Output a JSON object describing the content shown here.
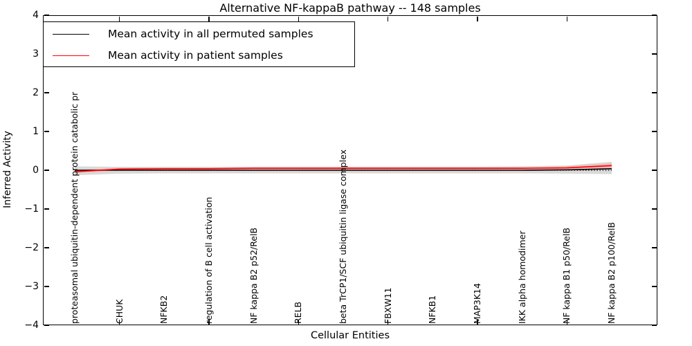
{
  "chart_data": {
    "type": "line",
    "title": "Alternative NF-kappaB pathway -- 148 samples",
    "xlabel": "Cellular Entities",
    "ylabel": "Inferred Activity",
    "ylim": [
      -4,
      4
    ],
    "yticks": [
      4,
      3,
      2,
      1,
      0,
      -1,
      -2,
      -3,
      -4
    ],
    "ytick_labels": [
      "4",
      "3",
      "2",
      "1",
      "0",
      "−1",
      "−2",
      "−3",
      "−4"
    ],
    "grid": false,
    "legend_position": "upper left",
    "categories": [
      "proteasomal ubiquitin-dependent protein catabolic pr",
      "CHUK",
      "NFKB2",
      "regulation of B cell activation",
      "NF kappa B2 p52/RelB",
      "RELB",
      "beta TrCP1/SCF ubiquitin ligase complex",
      "FBXW11",
      "NFKB1",
      "MAP3K14",
      "IKK alpha homodimer",
      "NF kappa B1 p50/RelB",
      "NF kappa B2 p100/RelB"
    ],
    "x_ticks_at_category_indices": [
      1,
      3,
      5,
      7,
      9,
      11
    ],
    "series": [
      {
        "name": "Mean activity in all permuted samples",
        "color": "#000000",
        "style": "solid",
        "values": [
          0.0,
          0.0,
          0.0,
          0.0,
          0.0,
          0.0,
          0.0,
          0.0,
          0.0,
          0.0,
          0.0,
          0.01,
          0.04
        ]
      },
      {
        "name": "Mean activity in patient samples",
        "color": "#ff0000",
        "style": "solid",
        "values": [
          -0.04,
          0.03,
          0.04,
          0.04,
          0.05,
          0.05,
          0.05,
          0.05,
          0.05,
          0.05,
          0.05,
          0.06,
          0.12
        ]
      }
    ],
    "zero_line": {
      "y": 0,
      "style": "dotted",
      "color": "#000000"
    },
    "bands": [
      {
        "name": "permuted-std-band",
        "color": "#d9d9d9",
        "upper": [
          0.1,
          0.09,
          0.09,
          0.09,
          0.09,
          0.09,
          0.09,
          0.09,
          0.09,
          0.09,
          0.1,
          0.12,
          0.22
        ],
        "lower": [
          -0.13,
          -0.09,
          -0.08,
          -0.08,
          -0.08,
          -0.08,
          -0.08,
          -0.08,
          -0.08,
          -0.08,
          -0.08,
          -0.09,
          -0.1
        ]
      },
      {
        "name": "patient-std-band",
        "color": "#f2b8b8",
        "upper": [
          0.0,
          0.06,
          0.07,
          0.07,
          0.08,
          0.08,
          0.08,
          0.08,
          0.08,
          0.08,
          0.08,
          0.1,
          0.18
        ],
        "lower": [
          -0.08,
          0.0,
          0.01,
          0.01,
          0.02,
          0.02,
          0.02,
          0.02,
          0.02,
          0.02,
          0.02,
          0.03,
          0.06
        ]
      }
    ]
  }
}
